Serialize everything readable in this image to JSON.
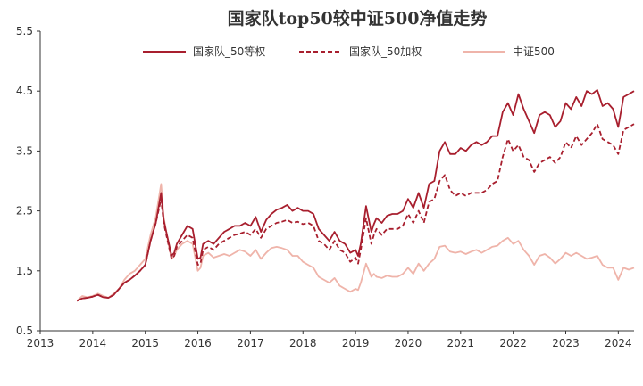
{
  "chart_data": {
    "type": "line",
    "title": "国家队top50较中证500净值走势",
    "xlabel": "",
    "ylabel": "",
    "xlim": [
      2013,
      2024.3
    ],
    "ylim": [
      0.5,
      5.5
    ],
    "x_ticks": [
      "2013",
      "2014",
      "2015",
      "2016",
      "2017",
      "2018",
      "2019",
      "2020",
      "2021",
      "2022",
      "2023",
      "2024"
    ],
    "y_ticks": [
      "0.5",
      "1.5",
      "2.5",
      "3.5",
      "4.5",
      "5.5"
    ],
    "grid": false,
    "legend_position": "top-center",
    "x": [
      2013.7,
      2013.8,
      2013.9,
      2014.0,
      2014.1,
      2014.2,
      2014.3,
      2014.4,
      2014.5,
      2014.6,
      2014.7,
      2014.8,
      2014.9,
      2015.0,
      2015.1,
      2015.2,
      2015.3,
      2015.35,
      2015.4,
      2015.45,
      2015.5,
      2015.55,
      2015.6,
      2015.7,
      2015.8,
      2015.9,
      2016.0,
      2016.05,
      2016.1,
      2016.2,
      2016.3,
      2016.4,
      2016.5,
      2016.6,
      2016.7,
      2016.8,
      2016.9,
      2017.0,
      2017.1,
      2017.2,
      2017.3,
      2017.4,
      2017.5,
      2017.6,
      2017.7,
      2017.8,
      2017.9,
      2018.0,
      2018.1,
      2018.2,
      2018.3,
      2018.4,
      2018.5,
      2018.6,
      2018.7,
      2018.8,
      2018.9,
      2019.0,
      2019.05,
      2019.1,
      2019.2,
      2019.3,
      2019.35,
      2019.4,
      2019.5,
      2019.6,
      2019.7,
      2019.8,
      2019.9,
      2020.0,
      2020.1,
      2020.2,
      2020.3,
      2020.4,
      2020.5,
      2020.6,
      2020.7,
      2020.8,
      2020.9,
      2021.0,
      2021.1,
      2021.2,
      2021.3,
      2021.4,
      2021.5,
      2021.6,
      2021.7,
      2021.8,
      2021.9,
      2022.0,
      2022.1,
      2022.2,
      2022.3,
      2022.4,
      2022.5,
      2022.6,
      2022.7,
      2022.8,
      2022.9,
      2023.0,
      2023.1,
      2023.2,
      2023.3,
      2023.4,
      2023.5,
      2023.6,
      2023.7,
      2023.8,
      2023.9,
      2024.0,
      2024.1,
      2024.2,
      2024.3
    ],
    "series": [
      {
        "name": "国家队_50等权",
        "color": "#a81f2e",
        "style": "solid",
        "values": [
          1.0,
          1.04,
          1.05,
          1.07,
          1.1,
          1.06,
          1.05,
          1.1,
          1.2,
          1.3,
          1.35,
          1.42,
          1.5,
          1.6,
          2.0,
          2.3,
          2.8,
          2.35,
          2.15,
          1.95,
          1.75,
          1.8,
          1.95,
          2.1,
          2.25,
          2.2,
          1.7,
          1.72,
          1.95,
          2.0,
          1.95,
          2.05,
          2.15,
          2.2,
          2.25,
          2.25,
          2.3,
          2.25,
          2.4,
          2.15,
          2.35,
          2.45,
          2.52,
          2.55,
          2.6,
          2.5,
          2.55,
          2.5,
          2.5,
          2.45,
          2.2,
          2.1,
          2.0,
          2.15,
          2.0,
          1.95,
          1.8,
          1.85,
          1.75,
          1.95,
          2.58,
          2.15,
          2.28,
          2.38,
          2.3,
          2.42,
          2.45,
          2.45,
          2.5,
          2.7,
          2.55,
          2.8,
          2.55,
          2.95,
          3.0,
          3.5,
          3.65,
          3.45,
          3.45,
          3.55,
          3.5,
          3.6,
          3.65,
          3.6,
          3.65,
          3.75,
          3.75,
          4.15,
          4.3,
          4.1,
          4.45,
          4.2,
          4.0,
          3.8,
          4.1,
          4.15,
          4.1,
          3.9,
          4.0,
          4.3,
          4.2,
          4.4,
          4.25,
          4.5,
          4.45,
          4.52,
          4.25,
          4.3,
          4.2,
          3.9,
          4.4,
          4.45,
          4.5
        ]
      },
      {
        "name": "国家队_50加权",
        "color": "#a81f2e",
        "style": "dashed",
        "values": [
          1.0,
          1.04,
          1.05,
          1.07,
          1.1,
          1.06,
          1.05,
          1.1,
          1.2,
          1.3,
          1.35,
          1.42,
          1.5,
          1.6,
          2.0,
          2.3,
          2.7,
          2.3,
          2.1,
          1.9,
          1.7,
          1.75,
          1.9,
          2.0,
          2.1,
          2.05,
          1.6,
          1.62,
          1.85,
          1.9,
          1.85,
          1.95,
          2.0,
          2.05,
          2.1,
          2.12,
          2.15,
          2.1,
          2.2,
          2.05,
          2.2,
          2.25,
          2.3,
          2.32,
          2.35,
          2.3,
          2.32,
          2.28,
          2.3,
          2.25,
          2.0,
          1.95,
          1.85,
          2.0,
          1.85,
          1.8,
          1.65,
          1.72,
          1.62,
          1.85,
          2.38,
          1.95,
          2.1,
          2.2,
          2.1,
          2.2,
          2.2,
          2.2,
          2.25,
          2.45,
          2.3,
          2.5,
          2.3,
          2.65,
          2.7,
          3.0,
          3.1,
          2.85,
          2.75,
          2.8,
          2.75,
          2.8,
          2.8,
          2.8,
          2.85,
          2.95,
          3.0,
          3.4,
          3.7,
          3.5,
          3.6,
          3.4,
          3.35,
          3.15,
          3.3,
          3.35,
          3.4,
          3.3,
          3.4,
          3.65,
          3.55,
          3.75,
          3.6,
          3.7,
          3.8,
          3.95,
          3.7,
          3.65,
          3.6,
          3.45,
          3.85,
          3.9,
          3.95
        ]
      },
      {
        "name": "中证500",
        "color": "#efb4aa",
        "style": "solid",
        "values": [
          1.0,
          1.08,
          1.06,
          1.08,
          1.12,
          1.08,
          1.05,
          1.12,
          1.2,
          1.35,
          1.45,
          1.5,
          1.6,
          1.7,
          2.1,
          2.4,
          2.95,
          2.4,
          2.15,
          1.9,
          1.7,
          1.75,
          1.85,
          1.95,
          2.0,
          1.95,
          1.5,
          1.55,
          1.75,
          1.8,
          1.72,
          1.75,
          1.78,
          1.75,
          1.8,
          1.85,
          1.82,
          1.75,
          1.85,
          1.7,
          1.8,
          1.88,
          1.9,
          1.88,
          1.85,
          1.75,
          1.75,
          1.65,
          1.6,
          1.55,
          1.4,
          1.35,
          1.3,
          1.38,
          1.25,
          1.2,
          1.15,
          1.2,
          1.18,
          1.3,
          1.62,
          1.4,
          1.45,
          1.4,
          1.38,
          1.42,
          1.4,
          1.4,
          1.45,
          1.55,
          1.45,
          1.62,
          1.5,
          1.62,
          1.7,
          1.9,
          1.92,
          1.82,
          1.8,
          1.82,
          1.78,
          1.82,
          1.85,
          1.8,
          1.85,
          1.9,
          1.92,
          2.0,
          2.05,
          1.95,
          2.0,
          1.85,
          1.75,
          1.6,
          1.75,
          1.78,
          1.72,
          1.62,
          1.7,
          1.8,
          1.75,
          1.8,
          1.75,
          1.7,
          1.72,
          1.75,
          1.6,
          1.55,
          1.55,
          1.35,
          1.55,
          1.52,
          1.55
        ]
      }
    ]
  }
}
